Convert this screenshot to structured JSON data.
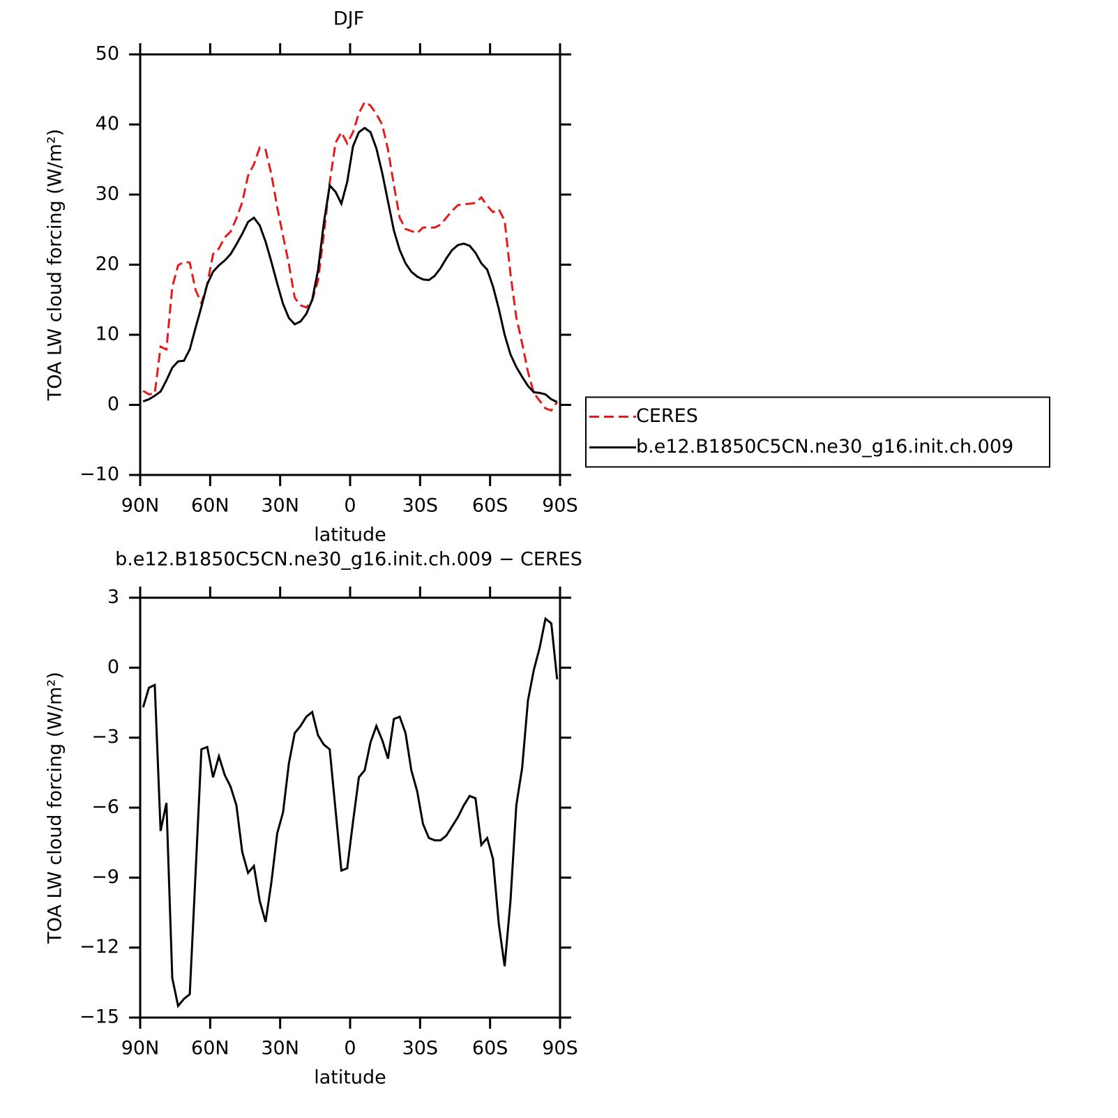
{
  "chart_data": [
    {
      "type": "line",
      "title": "DJF",
      "xlabel": "latitude",
      "ylabel": "TOA LW cloud forcing (W/m²)",
      "x": [
        88.75,
        86.25,
        83.75,
        81.25,
        78.75,
        76.25,
        73.75,
        71.25,
        68.75,
        66.25,
        63.75,
        61.25,
        58.75,
        56.25,
        53.75,
        51.25,
        48.75,
        46.25,
        43.75,
        41.25,
        38.75,
        36.25,
        33.75,
        31.25,
        28.75,
        26.25,
        23.75,
        21.25,
        18.75,
        16.25,
        13.75,
        11.25,
        8.75,
        6.25,
        3.75,
        1.25,
        -1.25,
        -3.75,
        -6.25,
        -8.75,
        -11.25,
        -13.75,
        -16.25,
        -18.75,
        -21.25,
        -23.75,
        -26.25,
        -28.75,
        -31.25,
        -33.75,
        -36.25,
        -38.75,
        -41.25,
        -43.75,
        -46.25,
        -48.75,
        -51.25,
        -53.75,
        -56.25,
        -58.75,
        -61.25,
        -63.75,
        -66.25,
        -68.75,
        -71.25,
        -73.75,
        -76.25,
        -78.75,
        -81.25,
        -83.75,
        -86.25,
        -88.75
      ],
      "series": [
        {
          "name": "CERES",
          "color": "#e41a1c",
          "style": "dashed",
          "values": [
            2,
            1.5,
            1.6,
            8.3,
            7.9,
            16.8,
            19.9,
            20.4,
            20.3,
            16.4,
            14.5,
            17.2,
            21.5,
            22.3,
            23.9,
            24.7,
            26.6,
            28.9,
            32.7,
            34.3,
            36.7,
            36.4,
            32.9,
            28.2,
            24.1,
            20.1,
            15.3,
            14.2,
            13.9,
            14.9,
            17.7,
            24.4,
            31.7,
            37.4,
            38.9,
            37.3,
            38.9,
            41.6,
            43.2,
            42.7,
            41.5,
            40,
            36.4,
            31.4,
            26.7,
            25.1,
            24.8,
            24.5,
            25.3,
            25.3,
            25.3,
            25.7,
            26.7,
            27.7,
            28.5,
            28.6,
            28.7,
            28.8,
            29.6,
            28.4,
            27.5,
            27.9,
            26.3,
            18.7,
            12.5,
            8.8,
            4.7,
            1.7,
            0.6,
            -0.5,
            -0.8,
            0.4
          ]
        },
        {
          "name": "b.e12.B1850C5CN.ne30_g16.init.ch.009",
          "color": "#000000",
          "style": "solid",
          "values": [
            0.5,
            0.8,
            1.3,
            1.9,
            3.5,
            5.3,
            6.2,
            6.3,
            7.9,
            11,
            14,
            17.2,
            19,
            19.9,
            20.6,
            21.5,
            22.9,
            24.4,
            26.1,
            26.7,
            25.6,
            23.3,
            20.4,
            17.3,
            14.4,
            12.4,
            11.5,
            11.9,
            13,
            15,
            19.2,
            26,
            31.3,
            30.4,
            28.7,
            31.8,
            36.9,
            38.9,
            39.5,
            38.9,
            36.6,
            33.1,
            29,
            24.9,
            22.1,
            20.2,
            19,
            18.3,
            17.9,
            17.8,
            18.4,
            19.5,
            20.9,
            22.1,
            22.8,
            23,
            22.7,
            21.7,
            20.2,
            19.3,
            16.9,
            13.7,
            10,
            7.2,
            5.4,
            4,
            2.7,
            1.8,
            1.7,
            1.5,
            0.8,
            0.4
          ]
        }
      ],
      "xlim": [
        90,
        -90
      ],
      "xticks": [
        {
          "value": 90,
          "label": "90N"
        },
        {
          "value": 60,
          "label": "60N"
        },
        {
          "value": 30,
          "label": "30N"
        },
        0,
        {
          "value": -30,
          "label": "30S"
        },
        {
          "value": -60,
          "label": "60S"
        },
        {
          "value": -90,
          "label": "90S"
        }
      ],
      "ylim": [
        -10,
        50
      ],
      "yticks": [
        {
          "value": -10,
          "label": "−10"
        },
        0,
        10,
        20,
        30,
        40,
        50
      ],
      "legend": "right"
    },
    {
      "type": "line",
      "title": "b.e12.B1850C5CN.ne30_g16.init.ch.009 − CERES",
      "xlabel": "latitude",
      "ylabel": "TOA LW cloud forcing (W/m²)",
      "x": [
        88.75,
        86.25,
        83.75,
        81.25,
        78.75,
        76.25,
        73.75,
        71.25,
        68.75,
        66.25,
        63.75,
        61.25,
        58.75,
        56.25,
        53.75,
        51.25,
        48.75,
        46.25,
        43.75,
        41.25,
        38.75,
        36.25,
        33.75,
        31.25,
        28.75,
        26.25,
        23.75,
        21.25,
        18.75,
        16.25,
        13.75,
        11.25,
        8.75,
        6.25,
        3.75,
        1.25,
        -1.25,
        -3.75,
        -6.25,
        -8.75,
        -11.25,
        -13.75,
        -16.25,
        -18.75,
        -21.25,
        -23.75,
        -26.25,
        -28.75,
        -31.25,
        -33.75,
        -36.25,
        -38.75,
        -41.25,
        -43.75,
        -46.25,
        -48.75,
        -51.25,
        -53.75,
        -56.25,
        -58.75,
        -61.25,
        -63.75,
        -66.25,
        -68.75,
        -71.25,
        -73.75,
        -76.25,
        -78.75,
        -81.25,
        -83.75,
        -86.25,
        -88.75
      ],
      "color": "#000000",
      "values": [
        -1.7,
        -0.86,
        -0.74,
        -7,
        -5.8,
        -13.3,
        -14.5,
        -14.2,
        -14,
        -8.8,
        -3.5,
        -3.4,
        -4.7,
        -3.8,
        -4.6,
        -5.1,
        -5.9,
        -7.9,
        -8.8,
        -8.5,
        -10,
        -10.9,
        -9.2,
        -7.1,
        -6.2,
        -4.1,
        -2.8,
        -2.5,
        -2.1,
        -1.9,
        -2.9,
        -3.3,
        -3.5,
        -6.1,
        -8.7,
        -8.6,
        -6.6,
        -4.7,
        -4.4,
        -3.2,
        -2.5,
        -3.1,
        -3.9,
        -2.2,
        -2.1,
        -2.8,
        -4.4,
        -5.3,
        -6.7,
        -7.3,
        -7.4,
        -7.4,
        -7.2,
        -6.8,
        -6.4,
        -5.9,
        -5.5,
        -5.6,
        -7.6,
        -7.3,
        -8.2,
        -11,
        -12.8,
        -10,
        -5.9,
        -4.3,
        -1.4,
        -0.1,
        0.85,
        2.1,
        1.9,
        -0.5
      ],
      "xlim": [
        90,
        -90
      ],
      "xticks": [
        {
          "value": 90,
          "label": "90N"
        },
        {
          "value": 60,
          "label": "60N"
        },
        {
          "value": 30,
          "label": "30N"
        },
        0,
        {
          "value": -30,
          "label": "30S"
        },
        {
          "value": -60,
          "label": "60S"
        },
        {
          "value": -90,
          "label": "90S"
        }
      ],
      "ylim": [
        -15,
        3
      ],
      "yticks": [
        {
          "value": -15,
          "label": "−15"
        },
        {
          "value": -12,
          "label": "−12"
        },
        {
          "value": -9,
          "label": "−9"
        },
        {
          "value": -6,
          "label": "−6"
        },
        {
          "value": -3,
          "label": "−3"
        },
        0,
        3
      ]
    }
  ]
}
